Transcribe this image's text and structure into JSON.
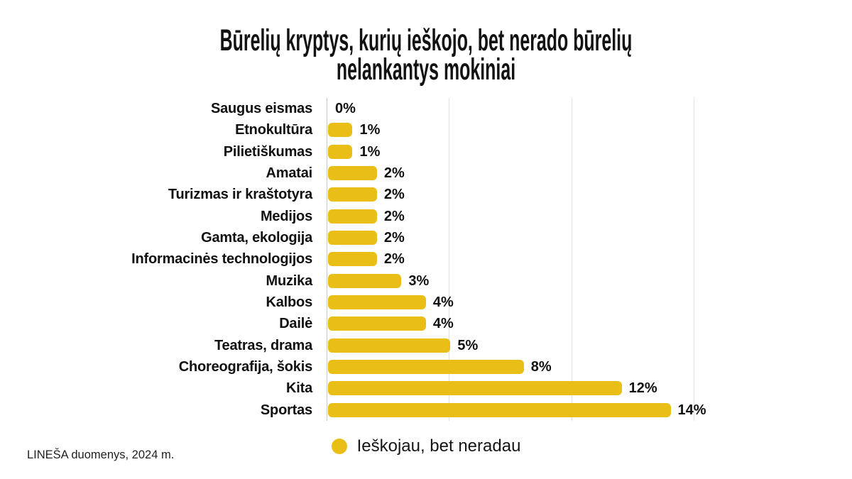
{
  "title": {
    "line1": "Būrelių kryptys, kurių ieškojo, bet nerado būrelių",
    "line2": "nelankantys mokiniai"
  },
  "legend": {
    "label": "Ieškojau, bet neradau",
    "marker_color": "#E9BE16"
  },
  "footer": "LINEŠA duomenys, 2024 m.",
  "colors": {
    "bar": "#E9BE16",
    "gridline": "#E2E2E2",
    "axis_line": "#C8C8C8",
    "text": "#111111",
    "background": "#FFFFFF"
  },
  "chart_data": {
    "type": "bar",
    "orientation": "horizontal",
    "title": "Būrelių kryptys, kurių ieškojo, bet nerado būrelių nelankantys mokiniai",
    "series_name": "Ieškojau, bet neradau",
    "categories": [
      "Saugus eismas",
      "Etnokultūra",
      "Pilietiškumas",
      "Amatai",
      "Turizmas ir kraštotyra",
      "Medijos",
      "Gamta, ekologija",
      "Informacinės technologijos",
      "Muzika",
      "Kalbos",
      "Dailė",
      "Teatras, drama",
      "Choreografija, šokis",
      "Kita",
      "Sportas"
    ],
    "values": [
      0,
      1,
      1,
      2,
      2,
      2,
      2,
      2,
      3,
      4,
      4,
      5,
      8,
      12,
      14
    ],
    "value_labels": [
      "0%",
      "1%",
      "1%",
      "2%",
      "2%",
      "2%",
      "2%",
      "2%",
      "3%",
      "4%",
      "4%",
      "5%",
      "8%",
      "12%",
      "14%"
    ],
    "xlabel": "",
    "ylabel": "",
    "xlim": [
      0,
      15
    ],
    "tick_values": [
      0,
      5,
      10,
      15
    ],
    "grid": true,
    "legend_position": "bottom",
    "bar_color": "#E9BE16",
    "source_note": "LINEŠA duomenys, 2024 m."
  }
}
